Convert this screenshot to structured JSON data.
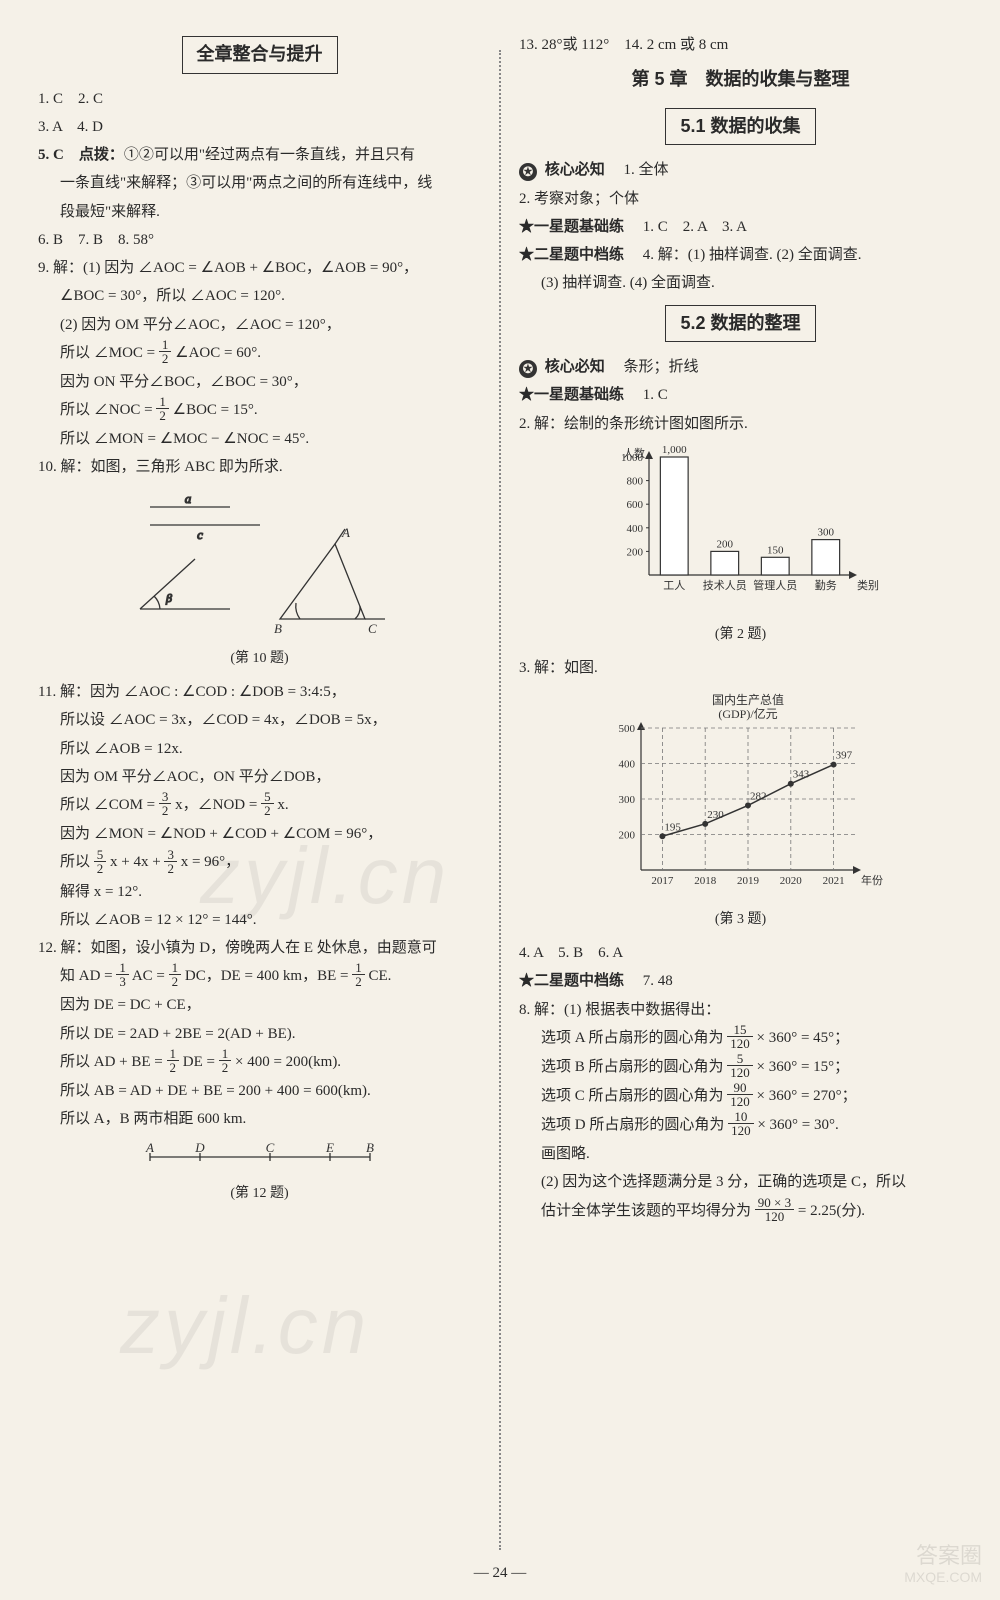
{
  "left": {
    "heading": "全章整合与提升",
    "l1": "1. C　2. C",
    "l2": "3. A　4. D",
    "l3a": "5. C　点拨：",
    "l3b": "①②可以用\"经过两点有一条直线，并且只有",
    "l3c": "一条直线\"来解释；③可以用\"两点之间的所有连线中，线",
    "l3d": "段最短\"来解释.",
    "l4": "6. B　7. B　8. 58°",
    "l5": "9. 解：(1) 因为 ∠AOC = ∠AOB + ∠BOC，∠AOB = 90°，",
    "l6": "∠BOC = 30°，所以 ∠AOC = 120°.",
    "l7": "(2) 因为 OM 平分∠AOC，∠AOC = 120°，",
    "l8a": "所以 ∠MOC = ",
    "l8b": " ∠AOC = 60°.",
    "l9": "因为 ON 平分∠BOC，∠BOC = 30°，",
    "l10a": "所以 ∠NOC = ",
    "l10b": " ∠BOC = 15°.",
    "l11": "所以 ∠MON = ∠MOC − ∠NOC = 45°.",
    "l12": "10. 解：如图，三角形 ABC 即为所求.",
    "fig10_cap": "(第 10 题)",
    "l13": "11. 解：因为 ∠AOC : ∠COD : ∠DOB = 3:4:5，",
    "l14": "所以设 ∠AOC = 3x，∠COD = 4x，∠DOB = 5x，",
    "l15": "所以 ∠AOB = 12x.",
    "l16": "因为 OM 平分∠AOC，ON 平分∠DOB，",
    "l17a": "所以 ∠COM = ",
    "l17b": " x，∠NOD = ",
    "l17c": " x.",
    "l18": "因为 ∠MON = ∠NOD + ∠COD + ∠COM = 96°，",
    "l19a": "所以 ",
    "l19b": " x + 4x + ",
    "l19c": " x = 96°，",
    "l20": "解得 x = 12°.",
    "l21": "所以 ∠AOB = 12 × 12° = 144°.",
    "l22": "12. 解：如图，设小镇为 D，傍晚两人在 E 处休息，由题意可",
    "l23a": "知 AD = ",
    "l23b": " AC = ",
    "l23c": " DC，DE = 400 km，BE = ",
    "l23d": " CE.",
    "l24": "因为 DE = DC + CE，",
    "l25": "所以 DE = 2AD + 2BE = 2(AD + BE).",
    "l26a": "所以 AD + BE = ",
    "l26b": " DE = ",
    "l26c": " × 400 = 200(km).",
    "l27": "所以 AB = AD + DE + BE = 200 + 400 = 600(km).",
    "l28": "所以 A，B 两市相距 600 km.",
    "fig12_cap": "(第 12 题)"
  },
  "right": {
    "l0": "13. 28°或 112°　14. 2 cm 或 8 cm",
    "chapter": "第 5 章　数据的收集与整理",
    "sec51": "5.1 数据的收集",
    "core_label": "核心必知",
    "core51": "1. 全体",
    "l1": "2. 考察对象；个体",
    "star1": "★一星题基础练",
    "star1_ans": "1. C　2. A　3. A",
    "star2": "★二星题中档练",
    "star2_q4a": "4. 解：(1) 抽样调查. (2) 全面调查.",
    "star2_q4b": "(3) 抽样调查. (4) 全面调查.",
    "sec52": "5.2 数据的整理",
    "core52": "条形；折线",
    "star52_1": "★一星题基础练",
    "star52_1_ans": "1. C",
    "l2": "2. 解：绘制的条形统计图如图所示.",
    "chart2": {
      "type": "bar",
      "ylabel": "人数",
      "ytick_max": 1000,
      "ytick_step": 200,
      "categories": [
        "工人",
        "技术人员",
        "管理人员",
        "勤务"
      ],
      "xlabel_right": "类别",
      "values": [
        1000,
        200,
        150,
        300
      ],
      "bar_color": "#ffffff",
      "bar_border": "#333333",
      "axis_color": "#333333",
      "fontsize": 11
    },
    "fig2_cap": "(第 2 题)",
    "l3": "3. 解：如图.",
    "chart3": {
      "type": "line",
      "title_lines": [
        "国内生产总值",
        "(GDP)/亿元"
      ],
      "ylim": [
        100,
        500
      ],
      "ytick_step": 100,
      "categories": [
        "2017",
        "2018",
        "2019",
        "2020",
        "2021"
      ],
      "xlabel_right": "年份",
      "values": [
        195,
        230,
        282,
        343,
        397
      ],
      "line_color": "#333333",
      "marker": "circle",
      "grid_style": "dashed",
      "grid_color": "#777777",
      "fontsize": 11
    },
    "fig3_cap": "(第 3 题)",
    "l4": "4. A　5. B　6. A",
    "star52_2": "★二星题中档练",
    "star52_2_ans": "7. 48",
    "l8": "8. 解：(1) 根据表中数据得出：",
    "l8a_1": "选项 A 所占扇形的圆心角为 ",
    "l8a_2": " × 360° = 45°；",
    "l8b_1": "选项 B 所占扇形的圆心角为 ",
    "l8b_2": " × 360° = 15°；",
    "l8c_1": "选项 C 所占扇形的圆心角为 ",
    "l8c_2": " × 360° = 270°；",
    "l8d_1": "选项 D 所占扇形的圆心角为 ",
    "l8d_2": " × 360° = 30°.",
    "l8e": "画图略.",
    "l8f_1": "(2) 因为这个选择题满分是 3 分，正确的选项是 C，所以",
    "l8f_2a": "估计全体学生该题的平均得分为 ",
    "l8f_2b": " = 2.25(分)."
  },
  "page_num": "— 24 —",
  "watermark1": "zyjl.cn",
  "watermark2": "zyjl.cn",
  "corner1": "答案圈",
  "corner2": "MXQE.COM"
}
